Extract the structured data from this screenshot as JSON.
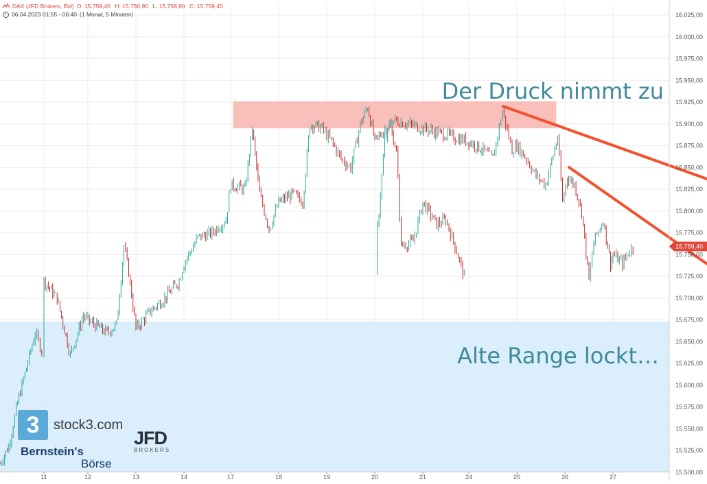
{
  "header": {
    "symbol_line": "DAX (JFD Brokers, Bid)",
    "open": "O: 15.759,40",
    "high": "H: 15.760,90",
    "low": "L: 15.758,90",
    "close": "C: 15.759,40",
    "time_line": "06.04.2023 01:55 - 06:40",
    "interval": "(1 Monat, 5 Minuten)"
  },
  "annotations": {
    "resistance_text": "Der Druck nimmt zu",
    "range_text": "Alte Range lockt…"
  },
  "price_label": "15.759,40",
  "logos": {
    "stock3_badge": "3",
    "stock3_text": "stock3.com",
    "bernstein_line1": "Bernstein's",
    "bernstein_line2": "Börse",
    "jfd_big": "JFD",
    "jfd_small": "BROKERS"
  },
  "colors": {
    "up": "#26a69a",
    "down": "#c62828",
    "trendline": "#f4502c",
    "resistance_zone": "#f8b4ae",
    "range_zone": "#d6ecfb",
    "price_label_bg": "#e0483b",
    "annotation_text": "#3f8a9a"
  },
  "chart_data": {
    "type": "line",
    "title": "DAX (JFD Brokers, Bid)",
    "xlabel": "",
    "ylabel": "",
    "x_ticks": [
      "11",
      "12",
      "13",
      "14",
      "17",
      "18",
      "19",
      "20",
      "21",
      "24",
      "25",
      "26",
      "27"
    ],
    "y_ticks": [
      "16.025,00",
      "16.000,00",
      "15.975,00",
      "15.950,00",
      "15.925,00",
      "15.900,00",
      "15.875,00",
      "15.850,00",
      "15.825,00",
      "15.800,00",
      "15.775,00",
      "15.750,00",
      "15.725,00",
      "15.700,00",
      "15.675,00",
      "15.650,00",
      "15.625,00",
      "15.600,00",
      "15.575,00",
      "15.550,00",
      "15.525,00",
      "15.500,00"
    ],
    "ylim": [
      15500,
      16025
    ],
    "grid": true,
    "series": [
      {
        "values": [
          [
            "10.0",
            15510
          ],
          [
            "10.2",
            15530
          ],
          [
            "10.4",
            15580
          ],
          [
            "10.6",
            15620
          ],
          [
            "10.8",
            15660
          ],
          [
            "10.95",
            15640
          ],
          [
            "11.0",
            15720
          ],
          [
            "11.3",
            15700
          ],
          [
            "11.6",
            15635
          ],
          [
            "11.9",
            15680
          ],
          [
            "12.0",
            15675
          ],
          [
            "12.4",
            15660
          ],
          [
            "12.6",
            15670
          ],
          [
            "12.75",
            15760
          ],
          [
            "12.85",
            15730
          ],
          [
            "13.0",
            15665
          ],
          [
            "13.3",
            15685
          ],
          [
            "13.6",
            15700
          ],
          [
            "13.9",
            15720
          ],
          [
            "14.0",
            15740
          ],
          [
            "14.3",
            15770
          ],
          [
            "14.6",
            15775
          ],
          [
            "14.9",
            15790
          ],
          [
            "17.0",
            15830
          ],
          [
            "17.3",
            15825
          ],
          [
            "17.45",
            15895
          ],
          [
            "17.6",
            15820
          ],
          [
            "17.8",
            15780
          ],
          [
            "18.0",
            15810
          ],
          [
            "18.3",
            15820
          ],
          [
            "18.5",
            15810
          ],
          [
            "18.65",
            15900
          ],
          [
            "18.9",
            15895
          ],
          [
            "19.1",
            15880
          ],
          [
            "19.3",
            15860
          ],
          [
            "19.5",
            15850
          ],
          [
            "19.7",
            15900
          ],
          [
            "19.85",
            15920
          ],
          [
            "20.0",
            15880
          ],
          [
            "20.3",
            15900
          ],
          [
            "20.45",
            15870
          ],
          [
            "20.55",
            15760
          ],
          [
            "20.8",
            15765
          ],
          [
            "21.0",
            15810
          ],
          [
            "21.3",
            15785
          ],
          [
            "21.5",
            15790
          ],
          [
            "21.7",
            15760
          ],
          [
            "21.9",
            15725
          ],
          [
            "22.1",
            15780
          ],
          [
            "22.25",
            15880
          ],
          [
            "22.4",
            15905
          ],
          [
            "24.0",
            15880
          ],
          [
            "24.3",
            15870
          ],
          [
            "24.5",
            15860
          ],
          [
            "24.7",
            15915
          ],
          [
            "24.9",
            15870
          ],
          [
            "25.0",
            15875
          ],
          [
            "25.2",
            15860
          ],
          [
            "25.4",
            15840
          ],
          [
            "25.6",
            15830
          ],
          [
            "25.85",
            15885
          ],
          [
            "25.95",
            15810
          ],
          [
            "26.05",
            15840
          ],
          [
            "26.2",
            15830
          ],
          [
            "26.35",
            15800
          ],
          [
            "26.5",
            15720
          ],
          [
            "26.6",
            15765
          ],
          [
            "26.8",
            15790
          ],
          [
            "26.95",
            15740
          ],
          [
            "27.0",
            15750
          ],
          [
            "27.2",
            15740
          ],
          [
            "27.35",
            15755
          ],
          [
            "27.45",
            15759.4
          ]
        ]
      }
    ],
    "annotations": [
      {
        "label": "Der Druck nimmt zu",
        "type": "text"
      },
      {
        "label": "Alte Range lockt…",
        "type": "text"
      }
    ]
  }
}
